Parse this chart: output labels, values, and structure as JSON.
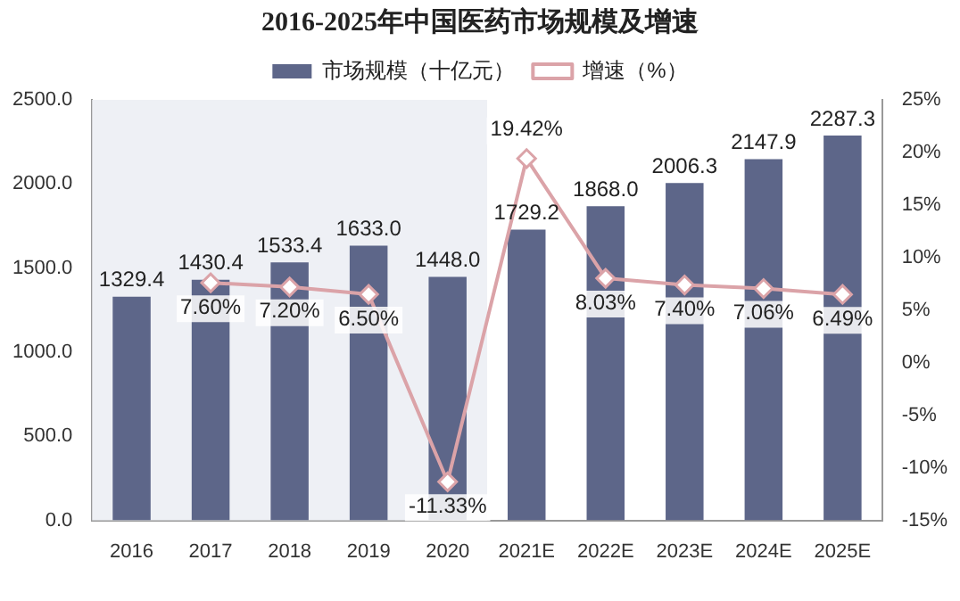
{
  "chart_data": {
    "type": "bar",
    "title": "2016-2025年中国医药市场规模及增速",
    "categories": [
      "2016",
      "2017",
      "2018",
      "2019",
      "2020",
      "2021E",
      "2022E",
      "2023E",
      "2024E",
      "2025E"
    ],
    "series": [
      {
        "name": "市场规模（十亿元）",
        "color": "#5d6689",
        "values": [
          1329.4,
          1430.4,
          1533.4,
          1633.0,
          1448.0,
          1729.2,
          1868.0,
          2006.3,
          2147.9,
          2287.3
        ],
        "value_labels": [
          "1329.4",
          "1430.4",
          "1533.4",
          "1633.0",
          "1448.0",
          "1729.2",
          "1868.0",
          "2006.3",
          "2147.9",
          "2287.3"
        ]
      },
      {
        "name": "增速（%）",
        "type": "line",
        "axis": "y2",
        "color": "#dba3a8",
        "marker": "diamond",
        "values": [
          null,
          7.6,
          7.2,
          6.5,
          -11.33,
          19.42,
          8.03,
          7.4,
          7.06,
          6.49
        ],
        "value_labels": [
          null,
          "7.60%",
          "7.20%",
          "6.50%",
          "-11.33%",
          "19.42%",
          "8.03%",
          "7.40%",
          "7.06%",
          "6.49%"
        ]
      }
    ],
    "ylim": [
      0,
      2500
    ],
    "yticks": [
      {
        "value": 0,
        "label": "0.0"
      },
      {
        "value": 500,
        "label": "500.0"
      },
      {
        "value": 1000,
        "label": "1000.0"
      },
      {
        "value": 1500,
        "label": "1500.0"
      },
      {
        "value": 2000,
        "label": "2000.0"
      },
      {
        "value": 2500,
        "label": "2500.0"
      }
    ],
    "y2lim": [
      -15,
      25
    ],
    "y2ticks": [
      {
        "value": -15,
        "label": "-15%"
      },
      {
        "value": -10,
        "label": "-10%"
      },
      {
        "value": -5,
        "label": "-5%"
      },
      {
        "value": 0,
        "label": "0%"
      },
      {
        "value": 5,
        "label": "5%"
      },
      {
        "value": 10,
        "label": "10%"
      },
      {
        "value": 15,
        "label": "15%"
      },
      {
        "value": 20,
        "label": "20%"
      },
      {
        "value": 25,
        "label": "25%"
      }
    ],
    "bands": [
      {
        "axis": "x",
        "from": "2016",
        "to": "2020",
        "color": "#eef0f5"
      }
    ],
    "legend": "top",
    "grid": false
  }
}
